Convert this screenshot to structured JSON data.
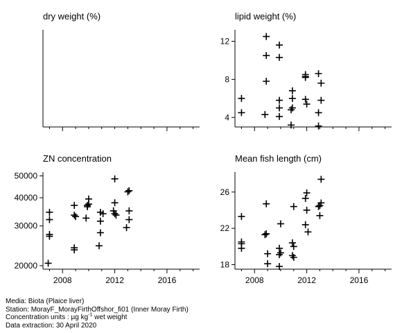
{
  "chart_data": [
    {
      "type": "scatter",
      "title": "dry weight (%)",
      "xlim": [
        2006.5,
        2018.5
      ],
      "x_ticks": [
        2008,
        2016,
        2024
      ],
      "x_tick_labels": [],
      "points": []
    },
    {
      "type": "scatter",
      "title": "lipid weight (%)",
      "xlim": [
        2006.5,
        2018.5
      ],
      "ylim": [
        3,
        13.2
      ],
      "x_ticks": [
        2008,
        2012,
        2016
      ],
      "x_tick_labels": [],
      "y_ticks": [
        4,
        8,
        12
      ],
      "y_tick_labels": [
        "4",
        "8",
        "12"
      ],
      "points": [
        [
          2007,
          6.0
        ],
        [
          2007,
          4.5
        ],
        [
          2008.9,
          12.5
        ],
        [
          2008.9,
          10.5
        ],
        [
          2008.9,
          7.8
        ],
        [
          2008.8,
          4.3
        ],
        [
          2009.9,
          11.6
        ],
        [
          2009.9,
          10.3
        ],
        [
          2009.9,
          5.8
        ],
        [
          2009.9,
          5.0
        ],
        [
          2009.9,
          4.1
        ],
        [
          2010.9,
          6.8
        ],
        [
          2010.9,
          6.0
        ],
        [
          2010.9,
          5.0
        ],
        [
          2010.8,
          4.8
        ],
        [
          2010.8,
          3.2
        ],
        [
          2011.9,
          8.5
        ],
        [
          2011.9,
          8.3
        ],
        [
          2011.9,
          8.2
        ],
        [
          2011.9,
          5.9
        ],
        [
          2012,
          5.4
        ],
        [
          2012.9,
          8.6
        ],
        [
          2013.1,
          7.6
        ],
        [
          2013.1,
          5.8
        ],
        [
          2012.9,
          4.5
        ],
        [
          2012.9,
          3.1
        ]
      ]
    },
    {
      "type": "scatter",
      "title": "ZN concentration",
      "scale": "log",
      "xlim": [
        2006.5,
        2018.5
      ],
      "ylim": [
        19300,
        52000
      ],
      "x_ticks": [
        2008,
        2012,
        2016
      ],
      "x_tick_labels": [
        "2008",
        "2012",
        "2016"
      ],
      "y_ticks": [
        20000,
        30000,
        40000,
        50000
      ],
      "y_tick_labels": [
        "20000",
        "30000",
        "40000",
        "50000"
      ],
      "points": [
        [
          2007,
          34500
        ],
        [
          2007,
          32000
        ],
        [
          2007,
          27500
        ],
        [
          2007,
          27000
        ],
        [
          2006.9,
          20500
        ],
        [
          2008.9,
          37000
        ],
        [
          2008.9,
          33500
        ],
        [
          2009,
          33000
        ],
        [
          2008.9,
          24000
        ],
        [
          2008.9,
          23500
        ],
        [
          2010,
          39500
        ],
        [
          2010,
          37500
        ],
        [
          2009.9,
          37000
        ],
        [
          2009.9,
          36500
        ],
        [
          2009.8,
          32500
        ],
        [
          2010.9,
          34500
        ],
        [
          2011.1,
          34000
        ],
        [
          2010.9,
          31500
        ],
        [
          2010.9,
          28000
        ],
        [
          2010.8,
          24500
        ],
        [
          2012,
          48500
        ],
        [
          2012,
          38000
        ],
        [
          2011.9,
          35000
        ],
        [
          2012,
          34000
        ],
        [
          2012.1,
          33500
        ],
        [
          2013.1,
          43000
        ],
        [
          2013,
          42500
        ],
        [
          2013.1,
          35000
        ],
        [
          2013.1,
          32000
        ],
        [
          2012.9,
          29500
        ]
      ]
    },
    {
      "type": "scatter",
      "title": "Mean fish length (cm)",
      "xlim": [
        2006.5,
        2018.5
      ],
      "ylim": [
        17.5,
        28.2
      ],
      "x_ticks": [
        2008,
        2012,
        2016
      ],
      "x_tick_labels": [
        "2008",
        "2012",
        "2016"
      ],
      "y_ticks": [
        18,
        22,
        26
      ],
      "y_tick_labels": [
        "18",
        "22",
        "26"
      ],
      "points": [
        [
          2007,
          23.3
        ],
        [
          2007,
          20.5
        ],
        [
          2007,
          20.3
        ],
        [
          2007,
          19.8
        ],
        [
          2008.9,
          24.7
        ],
        [
          2008.9,
          21.4
        ],
        [
          2008.8,
          21.3
        ],
        [
          2009,
          19.2
        ],
        [
          2009,
          18.1
        ],
        [
          2010,
          22.5
        ],
        [
          2009.9,
          19.8
        ],
        [
          2010,
          19.3
        ],
        [
          2009.9,
          19.1
        ],
        [
          2009.9,
          17.8
        ],
        [
          2011,
          24.4
        ],
        [
          2010.9,
          20.4
        ],
        [
          2011,
          20.0
        ],
        [
          2010.9,
          19.0
        ],
        [
          2011,
          18.8
        ],
        [
          2012,
          25.9
        ],
        [
          2011.9,
          25.3
        ],
        [
          2012,
          24.0
        ],
        [
          2011.9,
          22.4
        ],
        [
          2012.1,
          21.6
        ],
        [
          2013.1,
          27.4
        ],
        [
          2013.1,
          24.8
        ],
        [
          2013,
          24.5
        ],
        [
          2012.9,
          24.4
        ],
        [
          2013,
          23.4
        ]
      ]
    }
  ],
  "footer": {
    "media": "Media: Biota (Plaice liver)",
    "station": "Station: MorayF_MorayFirthOffshor_fi01 (Inner Moray Firth)",
    "units_prefix": "Concentration units : µg kg",
    "units_exp": "-1",
    "units_suffix": " wet weight",
    "extraction": "Data extraction: 30 April 2020"
  }
}
